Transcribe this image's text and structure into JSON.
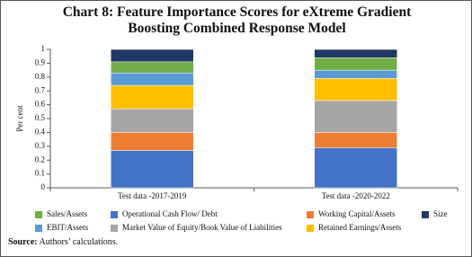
{
  "chart_data": {
    "type": "stacked-bar",
    "title": "Chart 8: Feature Importance Scores for eXtreme Gradient Boosting Combined Response Model",
    "y_label": "Per cent",
    "categories": [
      "Test data -2017-2019",
      "Test data -2020-2022"
    ],
    "series": [
      {
        "name": "Operational Cash Flow/ Debt",
        "color": "#4472c4",
        "values": [
          0.27,
          0.29
        ]
      },
      {
        "name": "Working Capital/Assets",
        "color": "#ed7d31",
        "values": [
          0.13,
          0.11
        ]
      },
      {
        "name": "Market Value of Equity/Book Value of Liabilities",
        "color": "#a5a5a5",
        "values": [
          0.17,
          0.23
        ]
      },
      {
        "name": "Retained Earnings/Assets",
        "color": "#ffc000",
        "values": [
          0.17,
          0.16
        ]
      },
      {
        "name": "EBIT/Assets",
        "color": "#5b9bd5",
        "values": [
          0.09,
          0.06
        ]
      },
      {
        "name": "Sales/Assets",
        "color": "#70ad47",
        "values": [
          0.08,
          0.09
        ]
      },
      {
        "name": "Size",
        "color": "#203864",
        "values": [
          0.09,
          0.06
        ]
      }
    ],
    "ylim": [
      0,
      1
    ],
    "yticks": [
      0,
      0.1,
      0.2,
      0.3,
      0.4,
      0.5,
      0.6,
      0.7,
      0.8,
      0.9,
      1
    ],
    "source_label": "Source:",
    "source_text": "Authors’ calculations."
  }
}
